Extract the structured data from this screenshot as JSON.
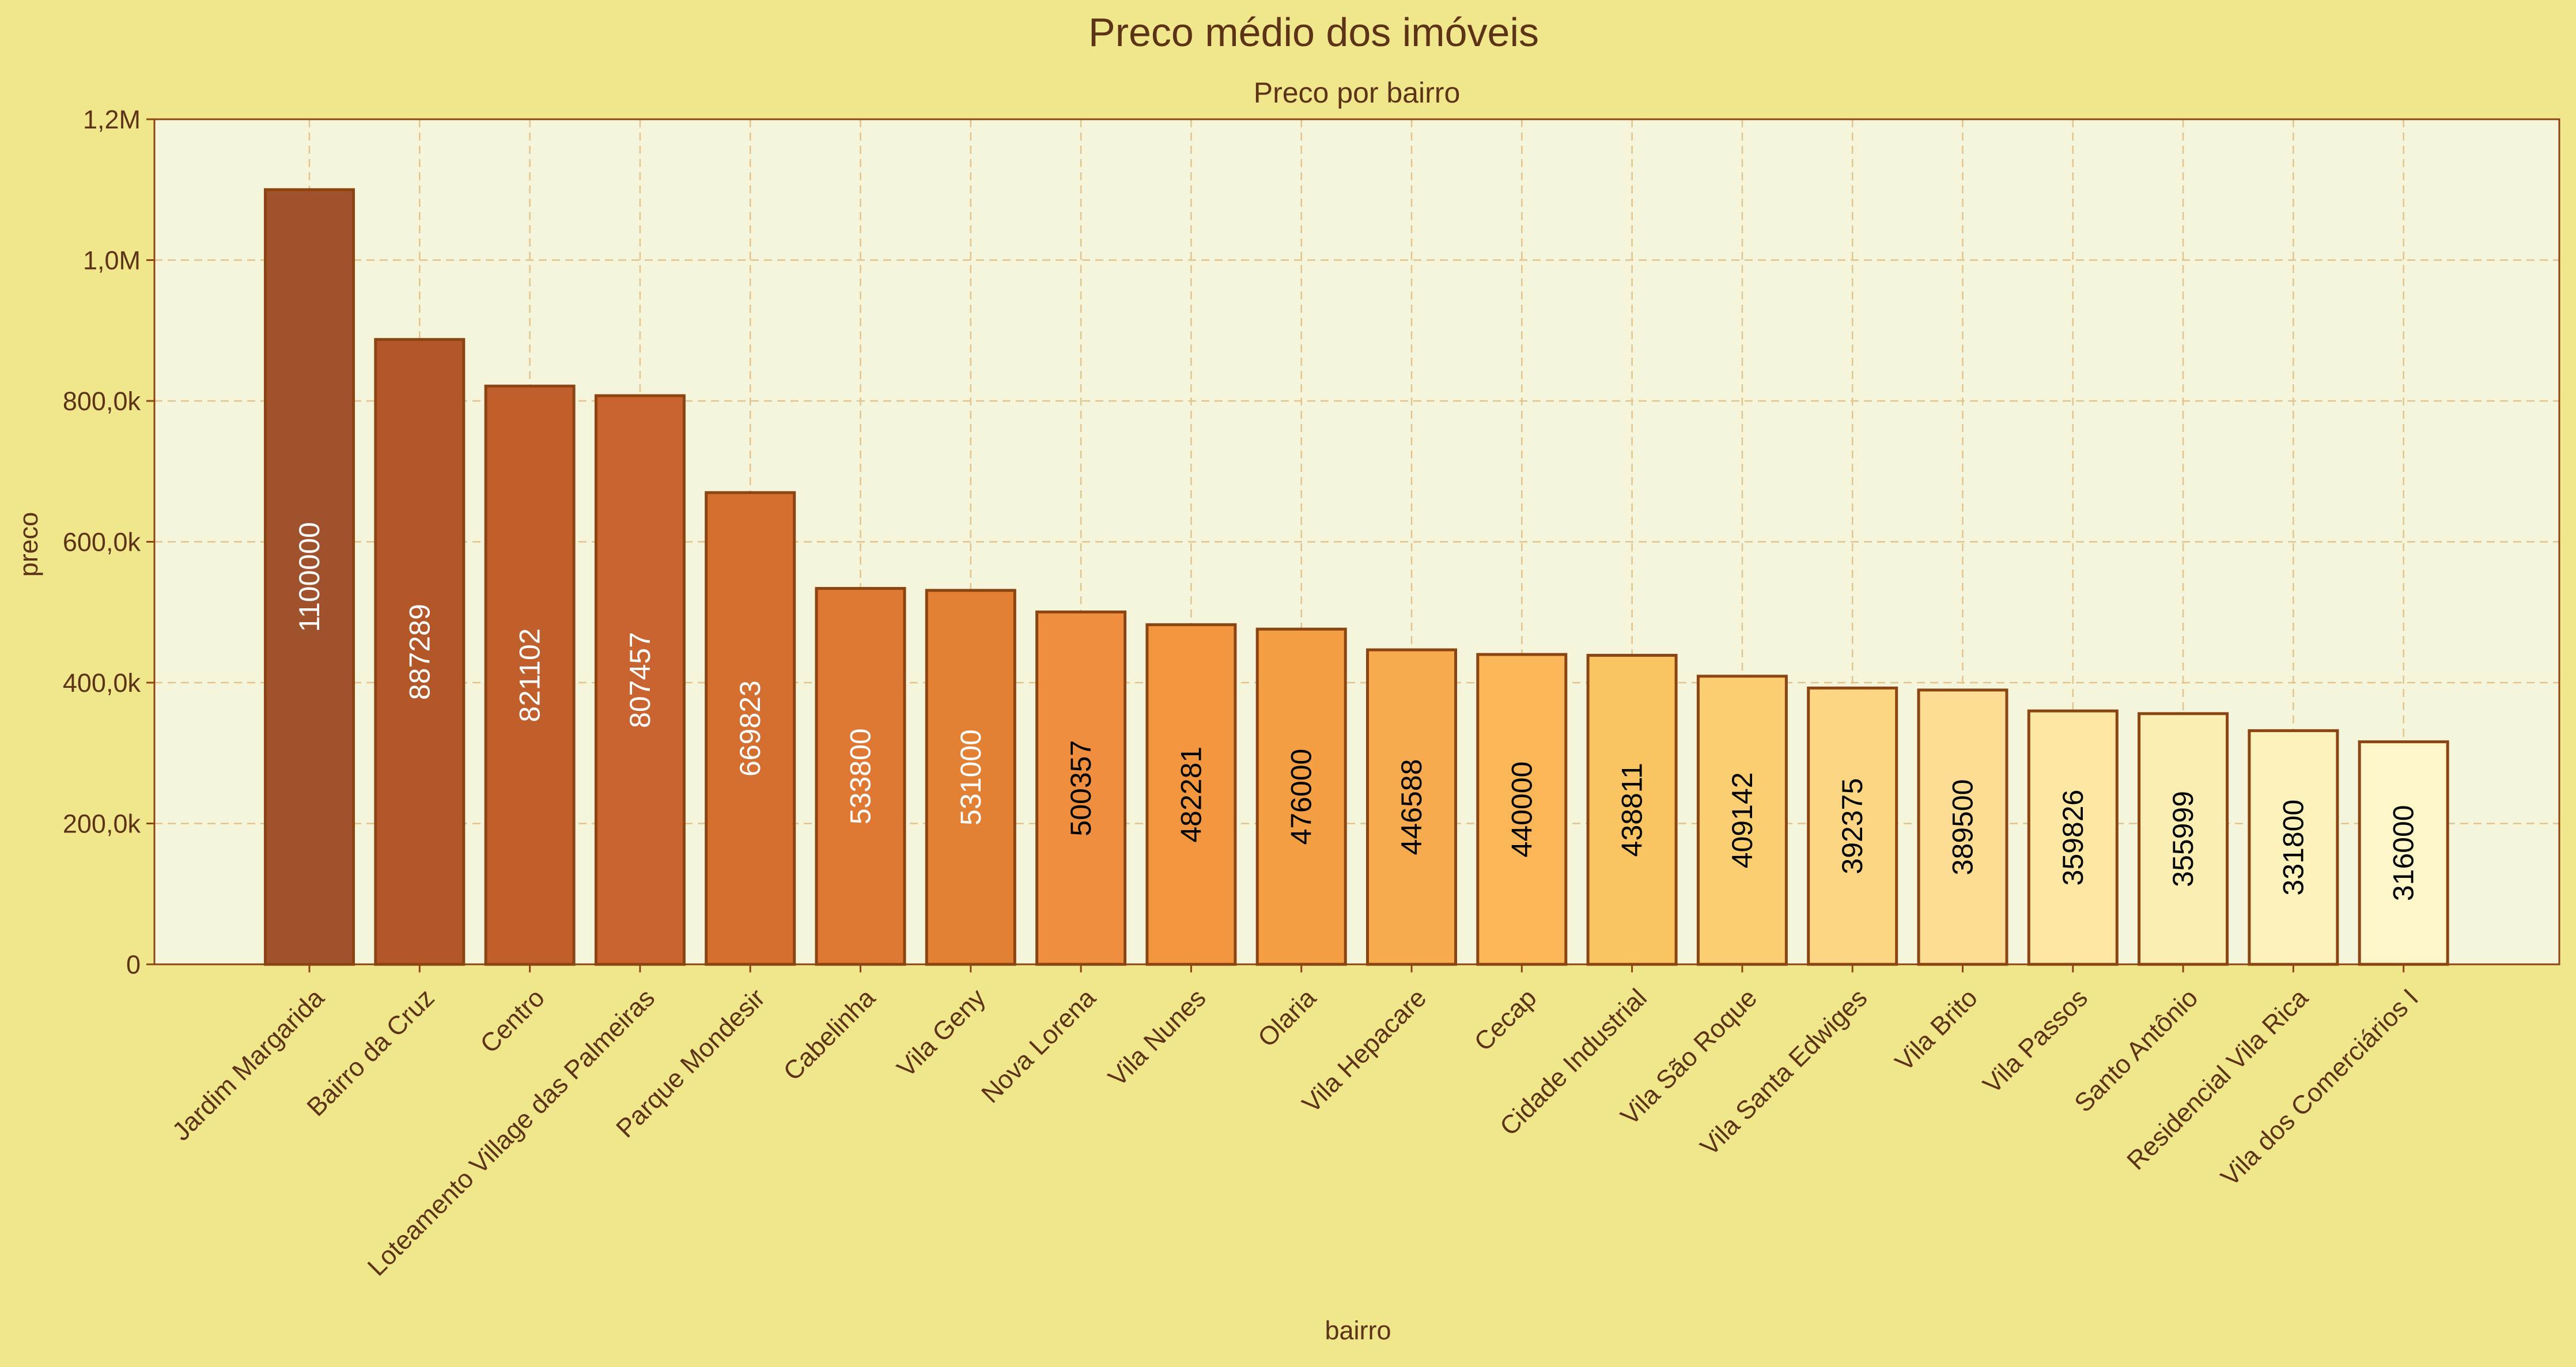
{
  "figure": {
    "suptitle": "Preco médio dos imóveis",
    "background": "#F0E68C"
  },
  "chart_data": {
    "type": "bar",
    "title": "Preco por bairro",
    "xlabel": "bairro",
    "ylabel": "preco",
    "ylim": [
      0,
      1200000
    ],
    "yticks": [
      0,
      200000,
      400000,
      600000,
      800000,
      1000000,
      1200000
    ],
    "ytick_labels": [
      "0",
      "200,0k",
      "400,0k",
      "600,0k",
      "800,0k",
      "1,0M",
      "1,2M"
    ],
    "grid": true,
    "legend": "none",
    "plot_background": "#F5F5DC",
    "categories": [
      "Jardim Margarida",
      "Bairro da Cruz",
      "Centro",
      "Loteamento Village das Palmeiras",
      "Parque Mondesir",
      "Cabelinha",
      "Vila Geny",
      "Nova Lorena",
      "Vila Nunes",
      "Olaria",
      "Vila Hepacare",
      "Cecap",
      "Cidade Industrial",
      "Vila São Roque",
      "Vila Santa Edwiges",
      "Vila Brito",
      "Vila Passos",
      "Santo Antônio",
      "Residencial Vila Rica",
      "Vila dos Comerciários I"
    ],
    "values": [
      1100000,
      887289,
      821102,
      807457,
      669823,
      533800,
      531000,
      500357,
      482281,
      476000,
      446588,
      440000,
      438811,
      409142,
      392375,
      389500,
      359826,
      355999,
      331800,
      316000
    ],
    "data_labels": [
      "1100000",
      "887289",
      "821102",
      "807457",
      "669823",
      "533800",
      "531000",
      "500357",
      "482281",
      "476000",
      "446588",
      "440000",
      "438811",
      "409142",
      "392375",
      "389500",
      "359826",
      "355999",
      "331800",
      "316000"
    ],
    "colors": [
      "#A0522D",
      "#B35728",
      "#C05F2B",
      "#C96430",
      "#D46F30",
      "#DE7832",
      "#E28034",
      "#EE8E3E",
      "#F2963F",
      "#F59F45",
      "#F8AA4F",
      "#FAB657",
      "#FBC463",
      "#FCCE72",
      "#FDD684",
      "#FCDD93",
      "#FCE7A3",
      "#FBEEB2",
      "#FCF3BC",
      "#FDF6C8"
    ],
    "label_colors": [
      "#FFFFFF",
      "#FFFFFF",
      "#FFFFFF",
      "#FFFFFF",
      "#FFFFFF",
      "#FFFFFF",
      "#FFFFFF",
      "#000000",
      "#000000",
      "#000000",
      "#000000",
      "#000000",
      "#000000",
      "#000000",
      "#000000",
      "#000000",
      "#000000",
      "#000000",
      "#000000",
      "#000000"
    ],
    "edge_color": "#8B4513",
    "text_color": "#5C3317"
  }
}
